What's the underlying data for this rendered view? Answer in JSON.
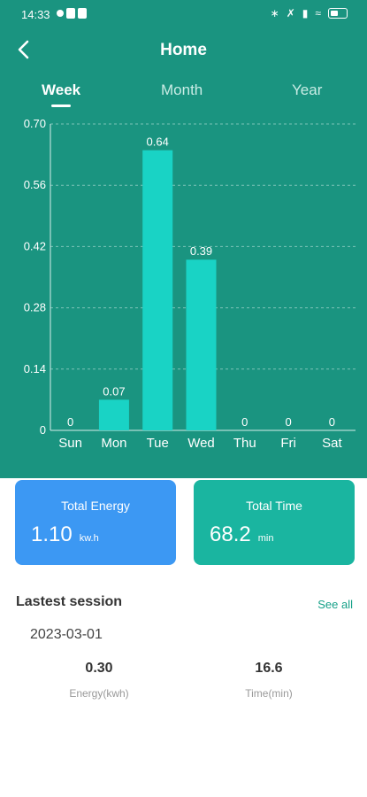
{
  "status_bar": {
    "time": "14:33"
  },
  "header": {
    "title": "Home"
  },
  "tabs": [
    {
      "label": "Week",
      "active": true
    },
    {
      "label": "Month",
      "active": false
    },
    {
      "label": "Year",
      "active": false
    }
  ],
  "chart_data": {
    "type": "bar",
    "categories": [
      "Sun",
      "Mon",
      "Tue",
      "Wed",
      "Thu",
      "Fri",
      "Sat"
    ],
    "values": [
      0,
      0.07,
      0.64,
      0.39,
      0,
      0,
      0
    ],
    "value_labels": [
      "0",
      "0.07",
      "0.64",
      "0.39",
      "0",
      "0",
      "0"
    ],
    "yticks": [
      "0",
      "0.14",
      "0.28",
      "0.42",
      "0.56",
      "0.70"
    ],
    "ylim": [
      0,
      0.7
    ],
    "grid": true,
    "bar_color": "#19d3c5"
  },
  "cards": {
    "energy": {
      "label": "Total Energy",
      "value": "1.10",
      "unit": "kw.h"
    },
    "time": {
      "label": "Total Time",
      "value": "68.2",
      "unit": "min"
    }
  },
  "latest": {
    "title": "Lastest session",
    "see_all": "See all",
    "date": "2023-03-01",
    "energy_value": "0.30",
    "energy_label": "Energy(kwh)",
    "time_value": "16.6",
    "time_label": "Time(min)"
  }
}
